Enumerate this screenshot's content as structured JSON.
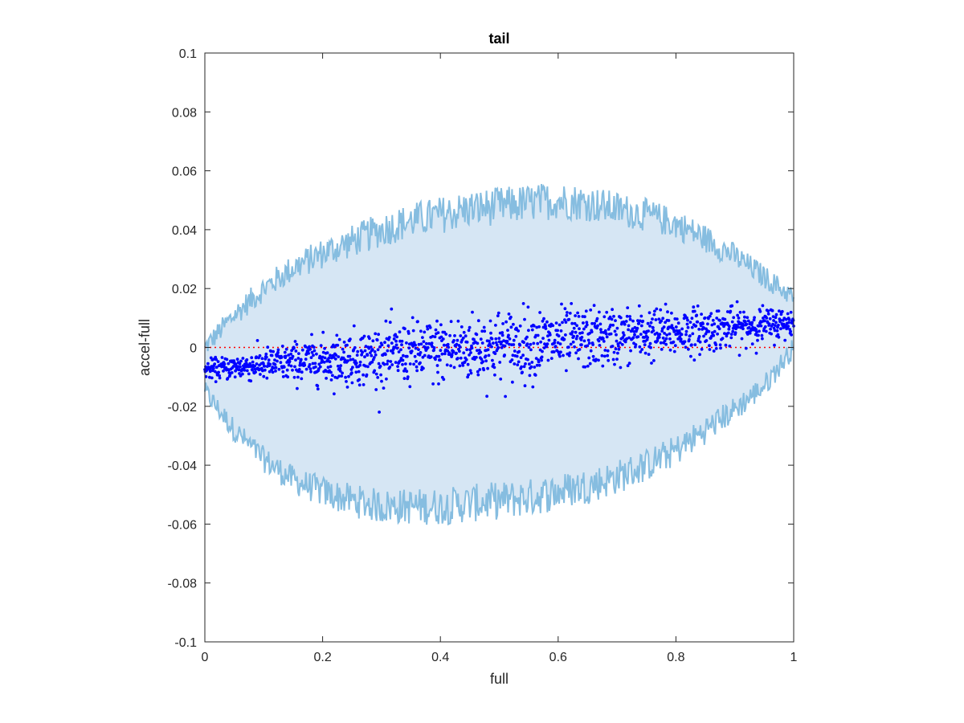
{
  "chart_data": {
    "type": "scatter",
    "title": "tail",
    "xlabel": "full",
    "ylabel": "accel-full",
    "xlim": [
      0,
      1
    ],
    "ylim": [
      -0.1,
      0.1
    ],
    "xticks": [
      0,
      0.2,
      0.4,
      0.6,
      0.8,
      1
    ],
    "xtick_labels": [
      "0",
      "0.2",
      "0.4",
      "0.6",
      "0.8",
      "1"
    ],
    "yticks": [
      -0.1,
      -0.08,
      -0.06,
      -0.04,
      -0.02,
      0,
      0.02,
      0.04,
      0.06,
      0.08,
      0.1
    ],
    "ytick_labels": [
      "-0.1",
      "-0.08",
      "-0.06",
      "-0.04",
      "-0.02",
      "0",
      "0.02",
      "0.04",
      "0.06",
      "0.08",
      "0.1"
    ],
    "grid": false,
    "reference_line": {
      "y": 0,
      "style": "dotted",
      "color": "#ff0000"
    },
    "band": {
      "fill_color": "#d6e6f4",
      "line_color": "#86bde0",
      "x": [
        0,
        0.05,
        0.1,
        0.15,
        0.2,
        0.25,
        0.3,
        0.35,
        0.4,
        0.45,
        0.5,
        0.55,
        0.6,
        0.65,
        0.7,
        0.75,
        0.8,
        0.85,
        0.9,
        0.95,
        1.0
      ],
      "upper": [
        0.0,
        0.011,
        0.02,
        0.027,
        0.032,
        0.036,
        0.04,
        0.043,
        0.045,
        0.047,
        0.048,
        0.049,
        0.05,
        0.049,
        0.047,
        0.045,
        0.042,
        0.037,
        0.031,
        0.024,
        0.017
      ],
      "lower": [
        -0.015,
        -0.028,
        -0.038,
        -0.045,
        -0.049,
        -0.052,
        -0.054,
        -0.054,
        -0.054,
        -0.053,
        -0.052,
        -0.051,
        -0.049,
        -0.047,
        -0.044,
        -0.04,
        -0.035,
        -0.028,
        -0.021,
        -0.013,
        0.0
      ]
    },
    "series": [
      {
        "color": "#0000ff",
        "trend": {
          "x": [
            0,
            1
          ],
          "y": [
            -0.0075,
            0.0085
          ]
        },
        "spread_sd": [
          0.0015,
          0.0045,
          0.006,
          0.0045,
          0.0025
        ],
        "spread_x": [
          0,
          0.25,
          0.5,
          0.75,
          1.0
        ],
        "n_points": 1500
      }
    ]
  }
}
